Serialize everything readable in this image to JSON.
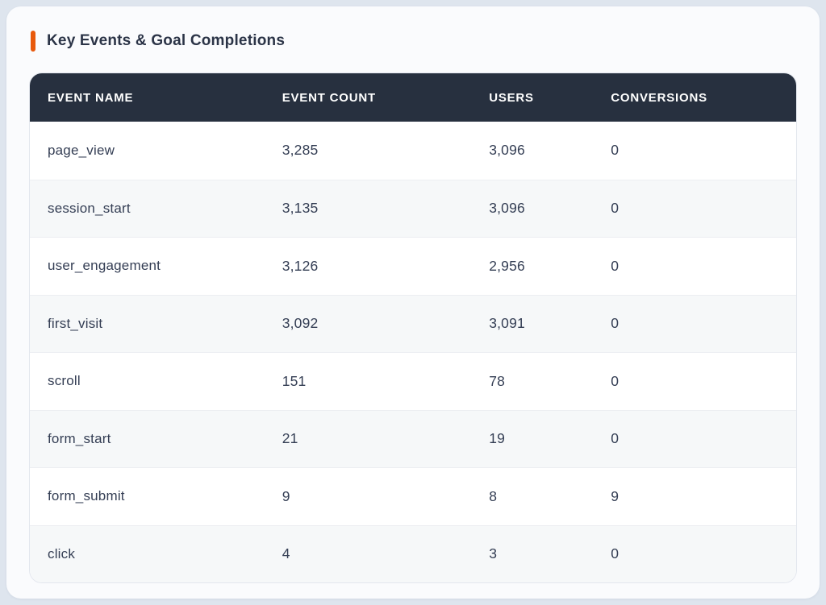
{
  "page": {
    "title": "Key Events & Goal Completions"
  },
  "colors": {
    "accent_orange": "#e8590c",
    "header_background": "#27303f",
    "header_text": "#ffffff",
    "title_text": "#2b3447",
    "cell_text": "#343e54",
    "alt_row_background": "#f6f8f9",
    "page_background": "#dee5ee",
    "card_background": "#fafbfd",
    "table_border": "#e3e7ee"
  },
  "table": {
    "columns": [
      "EVENT NAME",
      "EVENT COUNT",
      "USERS",
      "CONVERSIONS"
    ],
    "rows": [
      {
        "event_name": "page_view",
        "event_count": "3,285",
        "users": "3,096",
        "conversions": "0"
      },
      {
        "event_name": "session_start",
        "event_count": "3,135",
        "users": "3,096",
        "conversions": "0"
      },
      {
        "event_name": "user_engagement",
        "event_count": "3,126",
        "users": "2,956",
        "conversions": "0"
      },
      {
        "event_name": "first_visit",
        "event_count": "3,092",
        "users": "3,091",
        "conversions": "0"
      },
      {
        "event_name": "scroll",
        "event_count": "151",
        "users": "78",
        "conversions": "0"
      },
      {
        "event_name": "form_start",
        "event_count": "21",
        "users": "19",
        "conversions": "0"
      },
      {
        "event_name": "form_submit",
        "event_count": "9",
        "users": "8",
        "conversions": "9"
      },
      {
        "event_name": "click",
        "event_count": "4",
        "users": "3",
        "conversions": "0"
      }
    ]
  }
}
